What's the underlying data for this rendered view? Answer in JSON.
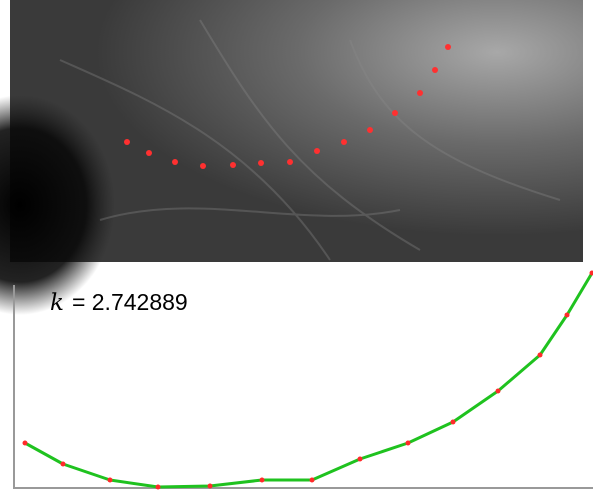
{
  "chart_data": {
    "type": "line",
    "annotation": {
      "symbol": "k",
      "text": "= 2.742889"
    },
    "x": [
      11,
      49,
      96,
      144,
      196,
      248,
      298,
      346,
      394,
      439,
      484,
      526,
      553,
      578
    ],
    "series": [
      {
        "color": "#1fc21f",
        "marker_color": "#ff2a2a",
        "values": [
          45,
          24,
          8,
          1,
          2,
          8,
          8,
          29,
          45,
          66,
          97,
          133,
          173,
          215
        ]
      }
    ],
    "xlim": [
      0,
      580
    ],
    "ylim": [
      0,
      220
    ]
  }
}
